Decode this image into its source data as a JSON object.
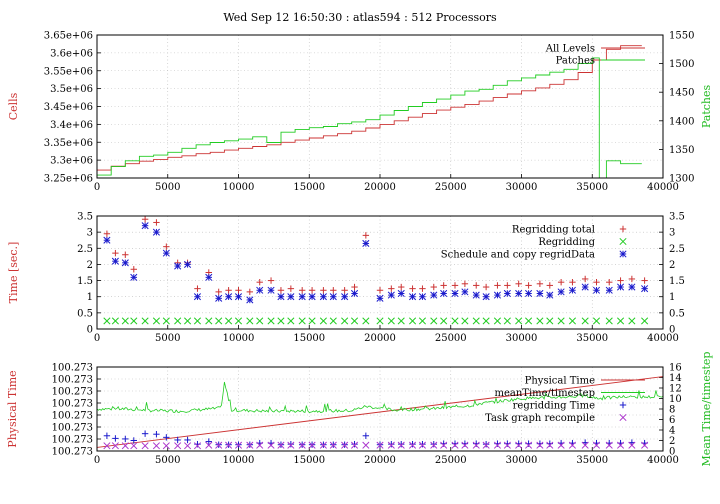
{
  "title": "Wed Sep 12 16:50:30 : atlas594 : 512 Processors",
  "colors": {
    "red": "#cc3333",
    "green": "#22cc22",
    "blue": "#1a1acc",
    "purple": "#aa33cc",
    "grid": "#bbbbbb"
  },
  "chart_data": [
    {
      "type": "line",
      "ylabel": "Cells",
      "y2label": "Patches",
      "xlim": [
        0,
        40000
      ],
      "ylim": [
        3250000,
        3650000
      ],
      "y2lim": [
        1300,
        1550
      ],
      "xticks": [
        "0",
        "5000",
        "10000",
        "15000",
        "20000",
        "25000",
        "30000",
        "35000",
        "40000"
      ],
      "yticks": [
        "3.25e+06",
        "3.3e+06",
        "3.35e+06",
        "3.4e+06",
        "3.45e+06",
        "3.5e+06",
        "3.55e+06",
        "3.6e+06",
        "3.65e+06"
      ],
      "y2ticks": [
        "1300",
        "1350",
        "1400",
        "1450",
        "1500",
        "1550"
      ],
      "grid": true,
      "legend": "top-right",
      "series": [
        {
          "name": "All Levels",
          "axis": "left",
          "color": "red",
          "x": [
            0,
            1000,
            2000,
            3000,
            4000,
            5000,
            6000,
            7000,
            8000,
            9000,
            10000,
            11000,
            12000,
            13000,
            14000,
            15000,
            16000,
            17000,
            18000,
            19000,
            20000,
            21000,
            22000,
            23000,
            24000,
            25000,
            26000,
            27000,
            28000,
            29000,
            30000,
            31000,
            32000,
            33000,
            34000,
            35000,
            36000,
            37000,
            38500
          ],
          "y": [
            3272000,
            3283000,
            3290000,
            3297000,
            3302000,
            3308000,
            3312000,
            3318000,
            3322000,
            3328000,
            3333000,
            3338000,
            3343000,
            3350000,
            3356000,
            3362000,
            3368000,
            3374000,
            3381000,
            3390000,
            3400000,
            3410000,
            3420000,
            3430000,
            3440000,
            3448000,
            3456000,
            3465000,
            3475000,
            3485000,
            3494000,
            3502000,
            3512000,
            3525000,
            3545000,
            3580000,
            3610000,
            3620000,
            3620000
          ]
        },
        {
          "name": "Patches",
          "axis": "right",
          "color": "green",
          "x": [
            0,
            1000,
            2000,
            3000,
            4000,
            5000,
            6000,
            7000,
            8000,
            9000,
            10000,
            11000,
            12000,
            13000,
            14000,
            15000,
            16000,
            17000,
            18000,
            19000,
            20000,
            21000,
            22000,
            23000,
            24000,
            25000,
            26000,
            27000,
            28000,
            29000,
            30000,
            31000,
            32000,
            33000,
            34000,
            35000,
            35300,
            35500,
            36000,
            37000,
            38500
          ],
          "y": [
            1305,
            1320,
            1330,
            1338,
            1340,
            1345,
            1352,
            1358,
            1362,
            1365,
            1368,
            1372,
            1362,
            1380,
            1385,
            1388,
            1390,
            1395,
            1398,
            1402,
            1410,
            1418,
            1425,
            1432,
            1438,
            1445,
            1452,
            1455,
            1462,
            1470,
            1475,
            1480,
            1485,
            1490,
            1500,
            1510,
            1510,
            1300,
            1330,
            1325,
            1325
          ]
        }
      ]
    },
    {
      "type": "scatter",
      "ylabel": "Time [sec.]",
      "xlim": [
        0,
        40000
      ],
      "ylim": [
        0,
        3.5
      ],
      "xticks": [
        "0",
        "5000",
        "10000",
        "15000",
        "20000",
        "25000",
        "30000",
        "35000",
        "40000"
      ],
      "yticks": [
        "0",
        "0.5",
        "1",
        "1.5",
        "2",
        "2.5",
        "3",
        "3.5"
      ],
      "grid": true,
      "legend": "top-right",
      "series": [
        {
          "name": "Regridding total",
          "marker": "plus",
          "color": "red",
          "x": [
            700,
            1300,
            2000,
            2600,
            3400,
            4200,
            4900,
            5700,
            6400,
            7100,
            7900,
            8600,
            9300,
            10000,
            10800,
            11500,
            12300,
            13000,
            13700,
            14500,
            15200,
            16000,
            16700,
            17500,
            18200,
            19000,
            20000,
            20800,
            21500,
            22300,
            23000,
            23800,
            24500,
            25300,
            26000,
            26800,
            27500,
            28300,
            29000,
            29800,
            30500,
            31300,
            32000,
            32800,
            33600,
            34500,
            35300,
            36200,
            37000,
            37800,
            38700
          ],
          "y": [
            2.95,
            2.35,
            2.3,
            1.85,
            3.4,
            3.3,
            2.55,
            2.05,
            2.05,
            1.25,
            1.75,
            1.15,
            1.2,
            1.2,
            1.15,
            1.45,
            1.5,
            1.2,
            1.25,
            1.2,
            1.2,
            1.2,
            1.2,
            1.2,
            1.3,
            2.9,
            1.2,
            1.25,
            1.3,
            1.25,
            1.25,
            1.3,
            1.35,
            1.35,
            1.4,
            1.35,
            1.3,
            1.35,
            1.35,
            1.4,
            1.35,
            1.4,
            1.35,
            1.45,
            1.45,
            1.55,
            1.45,
            1.45,
            1.5,
            1.55,
            1.5
          ]
        },
        {
          "name": "Regridding",
          "marker": "cross",
          "color": "green",
          "x": [
            700,
            1300,
            2000,
            2600,
            3400,
            4200,
            4900,
            5700,
            6400,
            7100,
            7900,
            8600,
            9300,
            10000,
            10800,
            11500,
            12300,
            13000,
            13700,
            14500,
            15200,
            16000,
            16700,
            17500,
            18200,
            19000,
            20000,
            20800,
            21500,
            22300,
            23000,
            23800,
            24500,
            25300,
            26000,
            26800,
            27500,
            28300,
            29000,
            29800,
            30500,
            31300,
            32000,
            32800,
            33600,
            34500,
            35300,
            36200,
            37000,
            37800,
            38700
          ],
          "y": [
            0.25,
            0.25,
            0.25,
            0.25,
            0.25,
            0.25,
            0.25,
            0.25,
            0.25,
            0.25,
            0.25,
            0.25,
            0.25,
            0.25,
            0.25,
            0.25,
            0.25,
            0.25,
            0.25,
            0.25,
            0.25,
            0.25,
            0.25,
            0.25,
            0.25,
            0.25,
            0.25,
            0.25,
            0.25,
            0.25,
            0.25,
            0.25,
            0.25,
            0.25,
            0.25,
            0.25,
            0.25,
            0.25,
            0.25,
            0.25,
            0.25,
            0.25,
            0.25,
            0.25,
            0.25,
            0.25,
            0.25,
            0.25,
            0.25,
            0.25,
            0.25
          ]
        },
        {
          "name": "Schedule and copy regridData",
          "marker": "star",
          "color": "blue",
          "x": [
            700,
            1300,
            2000,
            2600,
            3400,
            4200,
            4900,
            5700,
            6400,
            7100,
            7900,
            8600,
            9300,
            10000,
            10800,
            11500,
            12300,
            13000,
            13700,
            14500,
            15200,
            16000,
            16700,
            17500,
            18200,
            19000,
            20000,
            20800,
            21500,
            22300,
            23000,
            23800,
            24500,
            25300,
            26000,
            26800,
            27500,
            28300,
            29000,
            29800,
            30500,
            31300,
            32000,
            32800,
            33600,
            34500,
            35300,
            36200,
            37000,
            37800,
            38700
          ],
          "y": [
            2.75,
            2.1,
            2.05,
            1.6,
            3.2,
            3.0,
            2.35,
            1.95,
            2.0,
            1.0,
            1.6,
            0.95,
            1.0,
            1.0,
            0.9,
            1.2,
            1.2,
            1.0,
            1.0,
            1.0,
            1.0,
            1.0,
            1.0,
            1.0,
            1.1,
            2.65,
            0.95,
            1.05,
            1.1,
            1.0,
            1.0,
            1.05,
            1.1,
            1.1,
            1.15,
            1.05,
            1.0,
            1.05,
            1.1,
            1.1,
            1.1,
            1.1,
            1.05,
            1.15,
            1.2,
            1.3,
            1.2,
            1.2,
            1.3,
            1.3,
            1.25
          ]
        }
      ]
    },
    {
      "type": "line",
      "ylabel": "Physical Time",
      "y2label": "Mean Time/timestep",
      "xlim": [
        0,
        40000
      ],
      "ylim": [
        0,
        7
      ],
      "y2lim": [
        0,
        16
      ],
      "xticks": [
        "0",
        "5000",
        "10000",
        "15000",
        "20000",
        "25000",
        "30000",
        "35000",
        "40000"
      ],
      "yticks": [
        "100.273",
        "100.273",
        "100.273",
        "100.273",
        "100.273",
        "100.273",
        "100.273",
        "100.273"
      ],
      "y2ticks": [
        "0",
        "2",
        "4",
        "6",
        "8",
        "10",
        "12",
        "14",
        "16"
      ],
      "grid": true,
      "legend": "top-right",
      "series": [
        {
          "name": "Physical Time",
          "axis": "left",
          "color": "red",
          "x": [
            0,
            40000
          ],
          "y": [
            0.3,
            6.2
          ]
        },
        {
          "name": "meanTime/timestep",
          "axis": "right",
          "color": "green",
          "noisy": true,
          "x": [
            0,
            2000,
            4000,
            6000,
            8000,
            8800,
            9000,
            9500,
            12000,
            15000,
            18000,
            19000,
            21000,
            24000,
            26500,
            27000,
            30000,
            33000,
            34500,
            35500,
            37000,
            40000
          ],
          "y": [
            8.0,
            8.0,
            7.7,
            7.6,
            8.0,
            8.2,
            13.0,
            7.8,
            7.6,
            7.6,
            7.7,
            8.5,
            7.8,
            8.1,
            8.7,
            9.0,
            10.0,
            10.3,
            10.5,
            10.0,
            10.3,
            10.3
          ]
        },
        {
          "name": "regridding Time",
          "axis": "right",
          "marker": "plus",
          "color": "blue",
          "x": [
            700,
            1300,
            2000,
            2600,
            3400,
            4200,
            4900,
            5700,
            6400,
            7100,
            7900,
            8600,
            9300,
            10000,
            10800,
            11500,
            12300,
            13000,
            13700,
            14500,
            15200,
            16000,
            16700,
            17500,
            18200,
            19000,
            20000,
            20800,
            21500,
            22300,
            23000,
            23800,
            24500,
            25300,
            26000,
            26800,
            27500,
            28300,
            29000,
            29800,
            30500,
            31300,
            32000,
            32800,
            33600,
            34500,
            35300,
            36200,
            37000,
            37800,
            38700
          ],
          "y": [
            2.9,
            2.4,
            2.3,
            2.0,
            3.3,
            3.2,
            2.6,
            2.1,
            2.1,
            1.3,
            1.8,
            1.2,
            1.2,
            1.2,
            1.2,
            1.5,
            1.5,
            1.2,
            1.3,
            1.2,
            1.2,
            1.2,
            1.2,
            1.2,
            1.3,
            2.9,
            1.2,
            1.3,
            1.3,
            1.3,
            1.3,
            1.3,
            1.4,
            1.4,
            1.4,
            1.4,
            1.3,
            1.4,
            1.4,
            1.4,
            1.4,
            1.4,
            1.4,
            1.5,
            1.5,
            1.6,
            1.5,
            1.5,
            1.5,
            1.6,
            1.5
          ]
        },
        {
          "name": "Task graph recompile",
          "axis": "right",
          "marker": "cross",
          "color": "purple",
          "x": [
            700,
            1300,
            2000,
            2600,
            3400,
            4200,
            4900,
            5700,
            6400,
            7100,
            7900,
            8600,
            9300,
            10000,
            10800,
            11500,
            12300,
            13000,
            13700,
            14500,
            15200,
            16000,
            16700,
            17500,
            18200,
            19000,
            20000,
            20800,
            21500,
            22300,
            23000,
            23800,
            24500,
            25300,
            26000,
            26800,
            27500,
            28300,
            29000,
            29800,
            30500,
            31300,
            32000,
            32800,
            33600,
            34500,
            35300,
            36200,
            37000,
            37800,
            38700
          ],
          "y": [
            1.0,
            1.0,
            1.0,
            1.0,
            1.0,
            1.0,
            1.0,
            1.0,
            1.0,
            1.0,
            1.1,
            1.1,
            1.1,
            1.1,
            1.1,
            1.1,
            1.1,
            1.1,
            1.1,
            1.1,
            1.1,
            1.1,
            1.1,
            1.1,
            1.1,
            1.1,
            1.1,
            1.1,
            1.1,
            1.1,
            1.1,
            1.1,
            1.1,
            1.1,
            1.1,
            1.1,
            1.1,
            1.1,
            1.1,
            1.1,
            1.1,
            1.1,
            1.1,
            1.1,
            1.1,
            1.1,
            1.1,
            1.1,
            1.1,
            1.1,
            1.1
          ]
        }
      ]
    }
  ]
}
